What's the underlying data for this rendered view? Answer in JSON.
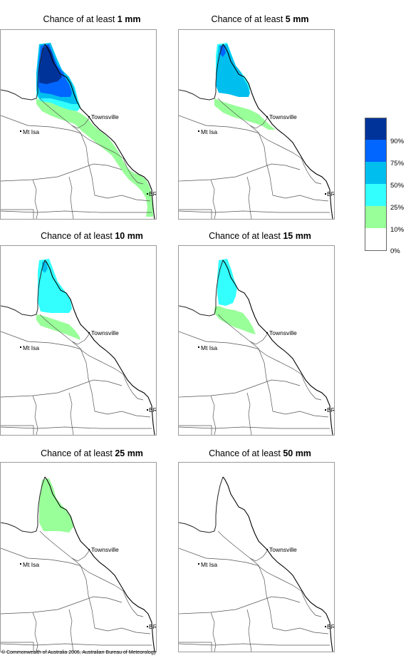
{
  "panels": [
    {
      "prefix": "Chance of at least ",
      "amount": "1 mm",
      "map_id": "1mm"
    },
    {
      "prefix": "Chance of at least ",
      "amount": "5 mm",
      "map_id": "5mm"
    },
    {
      "prefix": "Chance of at least ",
      "amount": "10 mm",
      "map_id": "10mm"
    },
    {
      "prefix": "Chance of at least ",
      "amount": "15 mm",
      "map_id": "15mm"
    },
    {
      "prefix": "Chance of at least ",
      "amount": "25 mm",
      "map_id": "25mm"
    },
    {
      "prefix": "Chance of at least ",
      "amount": "50 mm",
      "map_id": "50mm"
    }
  ],
  "places": {
    "townsville": "Townsville",
    "mt_isa": "Mt Isa",
    "brisbane": "BRIS"
  },
  "legend": {
    "labels": [
      "90%",
      "75%",
      "50%",
      "25%",
      "10%",
      "0%"
    ],
    "colors": [
      "#00339a",
      "#0066ff",
      "#00bfef",
      "#33ffff",
      "#99ff99",
      "#ffffff"
    ]
  },
  "footer": "© Commonwealth of Australia 2006, Australian Bureau of Meteorology"
}
